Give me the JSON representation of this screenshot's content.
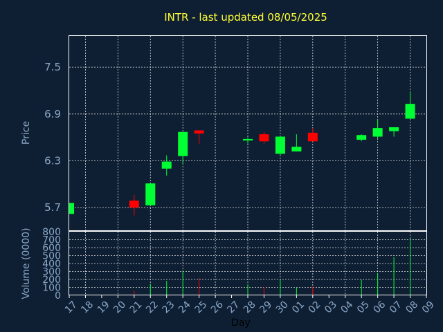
{
  "chart_data": {
    "title": "INTR - last updated 08/05/2025",
    "type": "candlestick",
    "xlabel": "Day",
    "price_chart": {
      "ylabel": "Price",
      "ylim": [
        5.4,
        7.9
      ],
      "yticks": [
        "5.7",
        "6.3",
        "6.9",
        "7.5"
      ],
      "grid": true,
      "up_color": "#00ff33",
      "down_color": "#ff0000",
      "candles": [
        {
          "day": "17",
          "open": 5.62,
          "close": 5.76,
          "high": 5.76,
          "low": 5.62
        },
        {
          "day": "21",
          "open": 5.79,
          "close": 5.7,
          "high": 5.86,
          "low": 5.6
        },
        {
          "day": "22",
          "open": 5.73,
          "close": 6.01,
          "high": 6.01,
          "low": 5.73
        },
        {
          "day": "23",
          "open": 6.2,
          "close": 6.29,
          "high": 6.37,
          "low": 6.11
        },
        {
          "day": "24",
          "open": 6.36,
          "close": 6.67,
          "high": 6.67,
          "low": 6.26
        },
        {
          "day": "25",
          "open": 6.69,
          "close": 6.65,
          "high": 6.69,
          "low": 6.52
        },
        {
          "day": "28",
          "open": 6.56,
          "close": 6.58,
          "high": 6.6,
          "low": 6.52
        },
        {
          "day": "29",
          "open": 6.64,
          "close": 6.55,
          "high": 6.67,
          "low": 6.52
        },
        {
          "day": "30",
          "open": 6.39,
          "close": 6.61,
          "high": 6.62,
          "low": 6.37
        },
        {
          "day": "01",
          "open": 6.42,
          "close": 6.48,
          "high": 6.64,
          "low": 6.42
        },
        {
          "day": "02",
          "open": 6.66,
          "close": 6.55,
          "high": 6.72,
          "low": 6.55
        },
        {
          "day": "05",
          "open": 6.57,
          "close": 6.63,
          "high": 6.64,
          "low": 6.55
        },
        {
          "day": "06",
          "open": 6.61,
          "close": 6.72,
          "high": 6.83,
          "low": 6.59
        },
        {
          "day": "07",
          "open": 6.68,
          "close": 6.73,
          "high": 6.73,
          "low": 6.61
        },
        {
          "day": "08",
          "open": 6.84,
          "close": 7.03,
          "high": 7.19,
          "low": 6.84
        }
      ]
    },
    "volume_chart": {
      "ylabel": "Volume (0000)",
      "ylim": [
        0,
        800
      ],
      "yticks": [
        "0",
        "100",
        "200",
        "300",
        "400",
        "500",
        "600",
        "700",
        "800"
      ],
      "bars": [
        {
          "day": "21",
          "value": 55,
          "color": "#ff0000"
        },
        {
          "day": "22",
          "value": 145,
          "color": "#00ff33"
        },
        {
          "day": "23",
          "value": 180,
          "color": "#00ff33"
        },
        {
          "day": "24",
          "value": 305,
          "color": "#00ff33"
        },
        {
          "day": "25",
          "value": 215,
          "color": "#ff0000"
        },
        {
          "day": "28",
          "value": 140,
          "color": "#00ff33"
        },
        {
          "day": "29",
          "value": 105,
          "color": "#ff0000"
        },
        {
          "day": "30",
          "value": 200,
          "color": "#00ff33"
        },
        {
          "day": "01",
          "value": 100,
          "color": "#00ff33"
        },
        {
          "day": "02",
          "value": 110,
          "color": "#ff0000"
        },
        {
          "day": "05",
          "value": 195,
          "color": "#00ff33"
        },
        {
          "day": "06",
          "value": 275,
          "color": "#00ff33"
        },
        {
          "day": "07",
          "value": 480,
          "color": "#00ff33"
        },
        {
          "day": "08",
          "value": 715,
          "color": "#00ff33"
        }
      ]
    },
    "x_ticks": [
      "17",
      "18",
      "19",
      "20",
      "21",
      "22",
      "23",
      "24",
      "25",
      "26",
      "27",
      "28",
      "29",
      "30",
      "01",
      "02",
      "03",
      "04",
      "05",
      "06",
      "07",
      "08",
      "09"
    ]
  }
}
